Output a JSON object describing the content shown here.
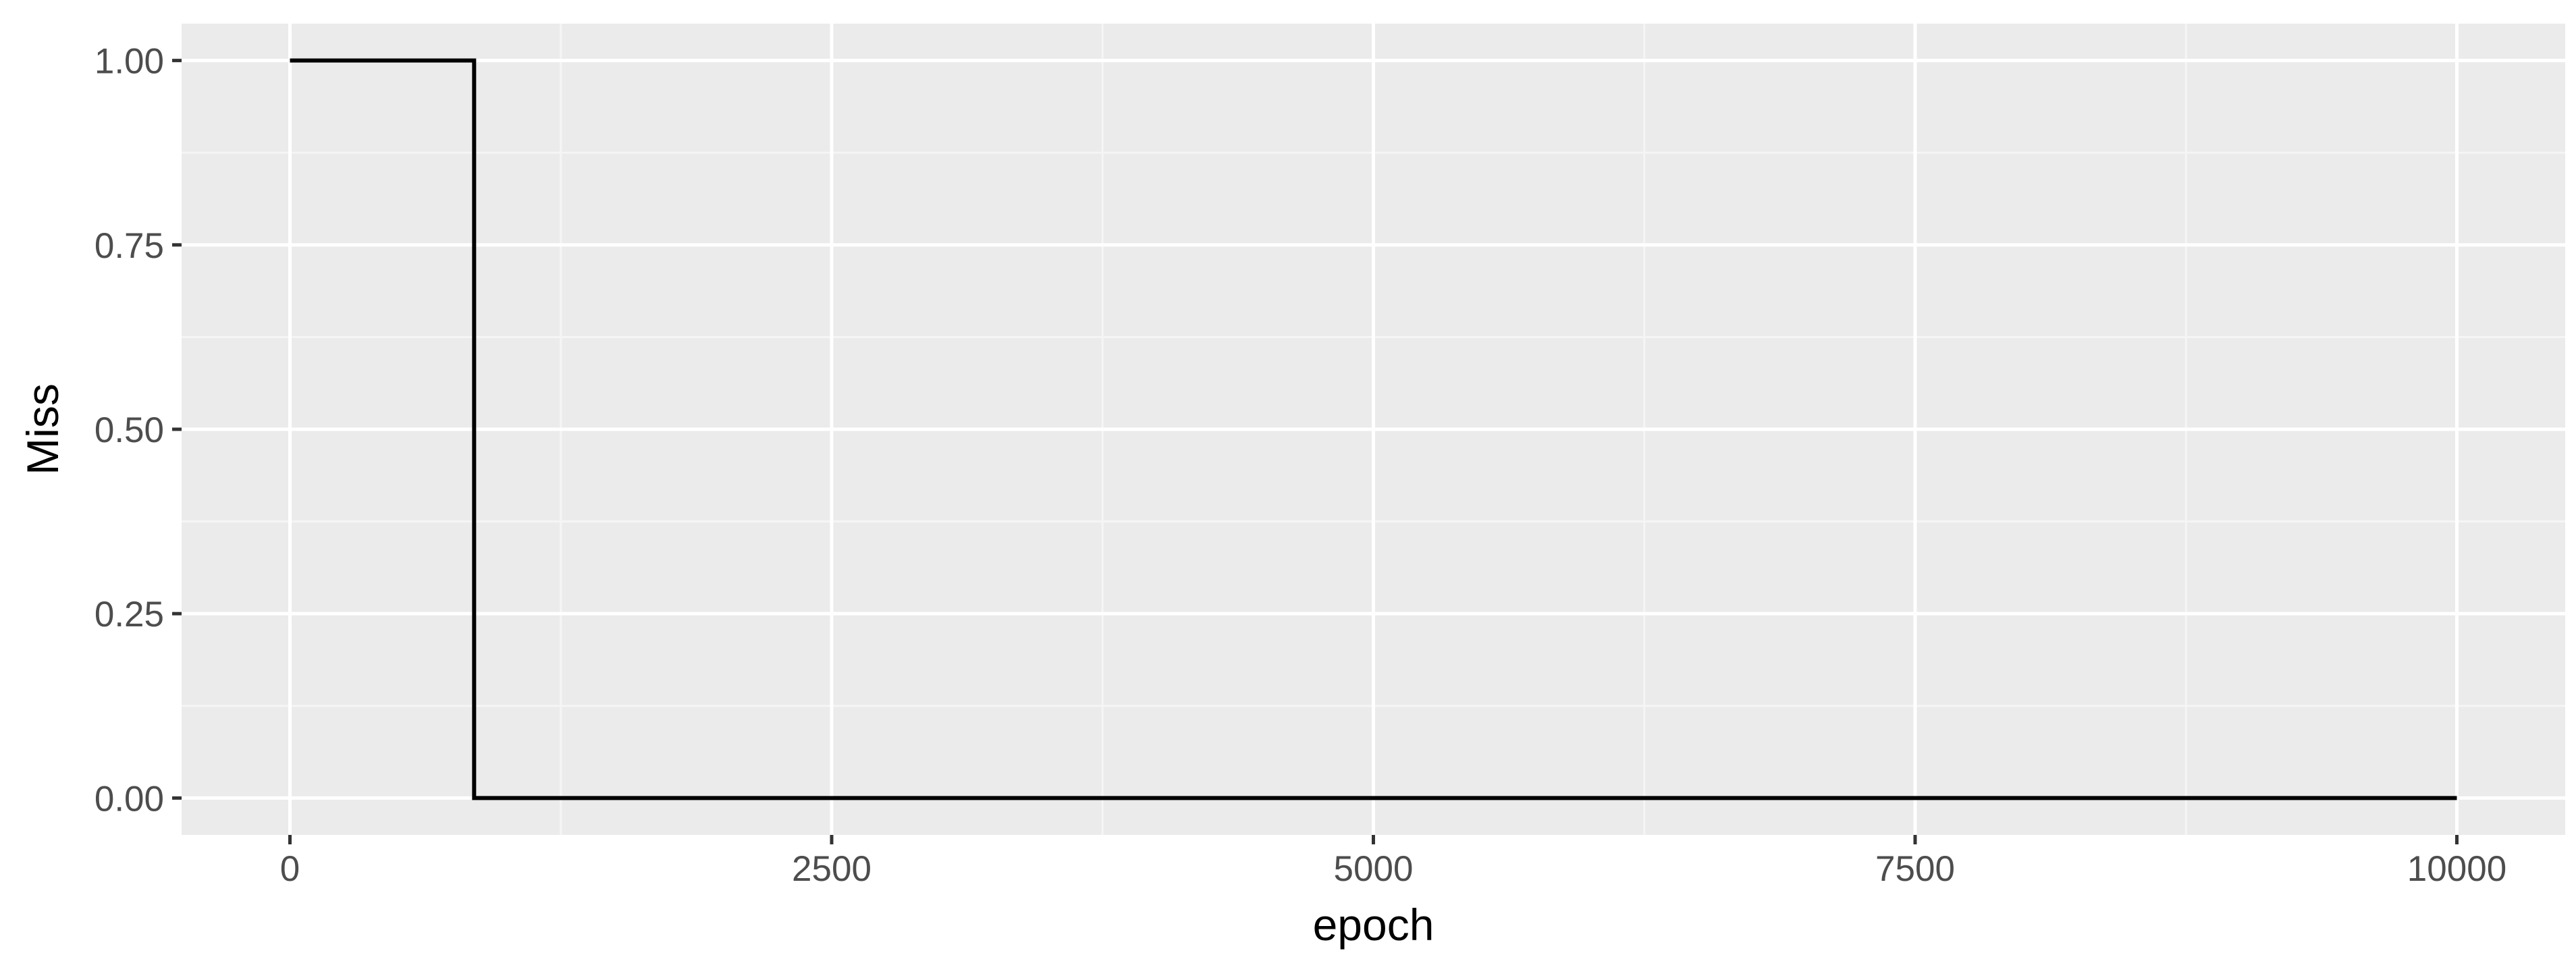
{
  "chart_data": {
    "type": "line",
    "step": true,
    "title": "",
    "xlabel": "epoch",
    "ylabel": "Miss",
    "xlim": [
      -500,
      10500
    ],
    "ylim": [
      -0.05,
      1.05
    ],
    "x_ticks": [
      0,
      2500,
      5000,
      7500,
      10000
    ],
    "x_tick_labels": [
      "0",
      "2500",
      "5000",
      "7500",
      "10000"
    ],
    "x_minor_ticks": [
      1250,
      3750,
      6250,
      8750
    ],
    "y_ticks": [
      0,
      0.25,
      0.5,
      0.75,
      1
    ],
    "y_tick_labels": [
      "0.00",
      "0.25",
      "0.50",
      "0.75",
      "1.00"
    ],
    "y_minor_ticks": [
      0.125,
      0.375,
      0.625,
      0.875
    ],
    "grid": true,
    "legend": "none",
    "series": [
      {
        "x": [
          0,
          850,
          850,
          10000
        ],
        "y": [
          1,
          1,
          0,
          0
        ]
      }
    ],
    "colors": {
      "panel_background": "#ebebeb",
      "grid_major": "#ffffff",
      "grid_minor": "#f5f5f5",
      "line": "#000000",
      "tick_text": "#4d4d4d",
      "tick_mark": "#333333"
    }
  }
}
